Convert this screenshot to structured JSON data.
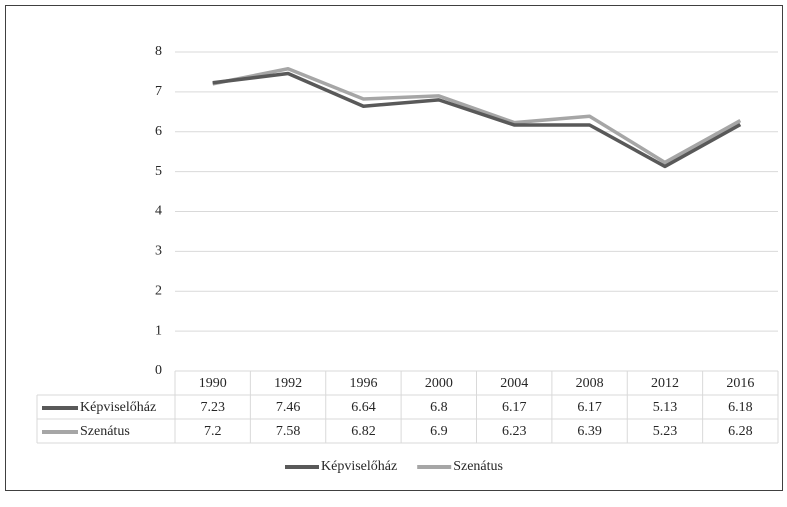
{
  "chart_data": {
    "type": "line",
    "categories": [
      "1990",
      "1992",
      "1996",
      "2000",
      "2004",
      "2008",
      "2012",
      "2016"
    ],
    "series": [
      {
        "name": "Képviselőház",
        "color": "#595959",
        "values": [
          7.23,
          7.46,
          6.64,
          6.8,
          6.17,
          6.17,
          5.13,
          6.18
        ]
      },
      {
        "name": "Szenátus",
        "color": "#a6a6a6",
        "values": [
          7.2,
          7.58,
          6.82,
          6.9,
          6.23,
          6.39,
          5.23,
          6.28
        ]
      }
    ],
    "ylim": [
      0,
      8
    ],
    "yticks": [
      0,
      1,
      2,
      3,
      4,
      5,
      6,
      7,
      8
    ],
    "grid": true,
    "legend": "bottom"
  }
}
